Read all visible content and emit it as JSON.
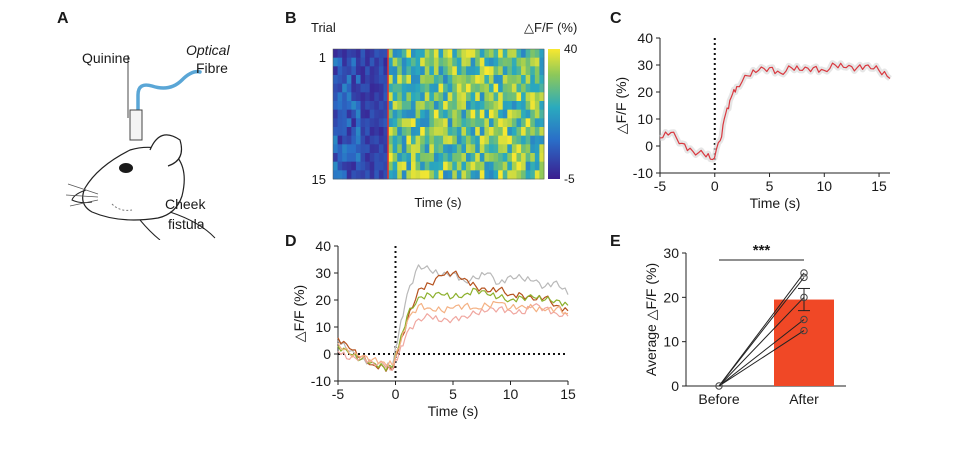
{
  "panels": {
    "A": {
      "letter": "A",
      "labels": {
        "quinine": "Quinine",
        "optical": "Optical",
        "fibre": "Fibre",
        "cheek": "Cheek",
        "fistula": "fistula"
      }
    },
    "B": {
      "letter": "B"
    },
    "C": {
      "letter": "C"
    },
    "D": {
      "letter": "D"
    },
    "E": {
      "letter": "E"
    }
  },
  "chart_data": [
    {
      "id": "B",
      "type": "heatmap",
      "ylabel": "Trial",
      "xlabel": "Time (s)",
      "colorbar_label": "△F/F (%)",
      "colorbar_ticks": [
        "40",
        "-5"
      ],
      "colorbar_range": [
        -5,
        40
      ],
      "y_ticks": [
        "1",
        "15"
      ],
      "rows": 15,
      "columns": 46,
      "stim_column": 12,
      "colors": {
        "stim_line": "#e8312a",
        "low": "#3b1d8f",
        "mid": "#2aa0c0",
        "high": "#f8e830"
      }
    },
    {
      "id": "C",
      "type": "line",
      "xlabel": "Time (s)",
      "ylabel": "△F/F (%)",
      "xlim": [
        -5,
        16
      ],
      "ylim": [
        -10,
        40
      ],
      "xticks": [
        "-5",
        "0",
        "5",
        "10",
        "15"
      ],
      "yticks": [
        "40",
        "30",
        "20",
        "10",
        "0",
        "-10"
      ],
      "stim_x": 0,
      "series": [
        {
          "name": "mean",
          "color": "#d9383f",
          "x": [
            -5,
            -4,
            -3,
            -2,
            -1,
            -0.2,
            0.5,
            1,
            1.5,
            2,
            3,
            4,
            5,
            6,
            7,
            8,
            9,
            10,
            11,
            12,
            13,
            14,
            15,
            16
          ],
          "y": [
            3,
            5,
            1,
            -2,
            -3,
            -5,
            2,
            12,
            18,
            22,
            26,
            28,
            29,
            27,
            29,
            28,
            29,
            28,
            30,
            29,
            29,
            30,
            28,
            25
          ]
        }
      ]
    },
    {
      "id": "D",
      "type": "line",
      "xlabel": "Time (s)",
      "ylabel": "△F/F (%)",
      "xlim": [
        -5,
        15
      ],
      "ylim": [
        -10,
        40
      ],
      "xticks": [
        "-5",
        "0",
        "5",
        "10",
        "15"
      ],
      "yticks": [
        "40",
        "30",
        "20",
        "10",
        "0",
        "-10"
      ],
      "stim_x": 0,
      "baseline_y": 0,
      "series": [
        {
          "name": "gray",
          "color": "#b9b9b9",
          "x": [
            -5,
            -4,
            -3,
            -2,
            -1,
            -0.3,
            0.3,
            1,
            2,
            3,
            4,
            5,
            6,
            7,
            8,
            9,
            10,
            11,
            12,
            13,
            14,
            15
          ],
          "y": [
            5,
            1,
            -2,
            -3,
            -4,
            -5,
            8,
            22,
            33,
            31,
            29,
            30,
            27,
            28,
            30,
            26,
            29,
            28,
            27,
            25,
            27,
            22
          ]
        },
        {
          "name": "brown",
          "color": "#b5521e",
          "x": [
            -5,
            -4,
            -3,
            -2,
            -1,
            -0.3,
            0.3,
            1,
            2,
            3,
            4,
            5,
            6,
            7,
            8,
            9,
            10,
            11,
            12,
            13,
            14,
            15
          ],
          "y": [
            6,
            2,
            -1,
            -4,
            -5,
            -6,
            2,
            12,
            24,
            26,
            29,
            30,
            28,
            25,
            23,
            24,
            22,
            22,
            20,
            21,
            18,
            16
          ]
        },
        {
          "name": "green",
          "color": "#8cb02c",
          "x": [
            -5,
            -4,
            -3,
            -2,
            -1,
            -0.3,
            0.3,
            1,
            2,
            3,
            4,
            5,
            6,
            7,
            8,
            9,
            10,
            11,
            12,
            13,
            14,
            15
          ],
          "y": [
            3,
            0,
            -2,
            -3,
            -5,
            -5,
            3,
            14,
            21,
            22,
            22,
            21,
            22,
            24,
            22,
            21,
            20,
            21,
            21,
            20,
            20,
            18
          ]
        },
        {
          "name": "pink",
          "color": "#f0a7a0",
          "x": [
            -5,
            -4,
            -3,
            -2,
            -1,
            -0.3,
            0.3,
            1,
            2,
            3,
            4,
            5,
            6,
            7,
            8,
            9,
            10,
            11,
            12,
            13,
            14,
            15
          ],
          "y": [
            1,
            -2,
            -1,
            -3,
            -4,
            -6,
            0,
            8,
            13,
            14,
            12,
            13,
            14,
            15,
            16,
            17,
            16,
            15,
            18,
            17,
            15,
            14
          ]
        },
        {
          "name": "orange",
          "color": "#f4b183",
          "x": [
            -5,
            -4,
            -3,
            -2,
            -1,
            -0.3,
            0.3,
            1,
            2,
            3,
            4,
            5,
            6,
            7,
            8,
            9,
            10,
            11,
            12,
            13,
            14,
            15
          ],
          "y": [
            4,
            0,
            -1,
            -2,
            -3,
            -4,
            2,
            12,
            18,
            17,
            16,
            17,
            18,
            17,
            18,
            19,
            17,
            18,
            17,
            16,
            17,
            15
          ]
        }
      ]
    },
    {
      "id": "E",
      "type": "bar",
      "categories": [
        "Before",
        "After"
      ],
      "values": [
        0,
        19.5
      ],
      "error": [
        0,
        2.5
      ],
      "ylabel": "Average △F/F (%)",
      "ylim": [
        0,
        30
      ],
      "yticks": [
        "30",
        "20",
        "10",
        "0"
      ],
      "significance": "***",
      "bar_color": "#f04826",
      "individual_points": {
        "before": [
          0,
          0,
          0,
          0,
          0
        ],
        "after": [
          25.5,
          24.5,
          20,
          15,
          12.5
        ]
      }
    }
  ]
}
